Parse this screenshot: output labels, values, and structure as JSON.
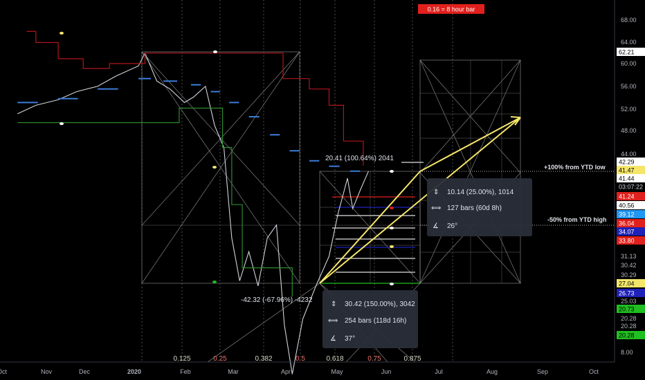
{
  "colors": {
    "background": "#000000",
    "price": "#d1d4dc",
    "ma_line": "#3b7dd8",
    "stop_line": "#b2161b",
    "support_line": "#2e8b2e",
    "projection_arrow": "#f5e66b",
    "fib_label": "#d9d9c6",
    "fib_label_red": "#e8736c",
    "tooltip_bg": "#2a2e39"
  },
  "timeframe_note": "0.16 = 8 hour bar",
  "x_axis_labels": [
    "Oct",
    "Nov",
    "Dec",
    "2020",
    "Feb",
    "Mar",
    "Apr",
    "May",
    "Jun",
    "Jul",
    "Aug",
    "Sep",
    "Oct"
  ],
  "y_axis_ticks": [
    "68.00",
    "64.00",
    "60.00",
    "56.00",
    "52.00",
    "48.00",
    "44.00",
    "40.56",
    "31.13",
    "30.42",
    "30.29",
    "25.03",
    "20.28",
    "20.28",
    "8.00"
  ],
  "price_badges": [
    {
      "text": "62.21",
      "bg": "#ffffff",
      "fg": "#000000"
    },
    {
      "text": "42.29",
      "bg": "#ffffff",
      "fg": "#000000"
    },
    {
      "text": "41.47",
      "bg": "#f5e66b",
      "fg": "#000000"
    },
    {
      "text": "41.44",
      "bg": "#ffffff",
      "fg": "#000000"
    },
    {
      "text": "03:07:22",
      "bg": "#000000",
      "fg": "#d1d4dc"
    },
    {
      "text": "41.24",
      "bg": "#e0201c",
      "fg": "#ffffff"
    },
    {
      "text": "40.56",
      "bg": "#ffffff",
      "fg": "#000000"
    },
    {
      "text": "39.12",
      "bg": "#2196f3",
      "fg": "#ffffff"
    },
    {
      "text": "36.04",
      "bg": "#e0201c",
      "fg": "#ffffff"
    },
    {
      "text": "34.07",
      "bg": "#1e22b8",
      "fg": "#ffffff"
    },
    {
      "text": "33.80",
      "bg": "#e0201c",
      "fg": "#ffffff"
    },
    {
      "text": "27.04",
      "bg": "#f5e66b",
      "fg": "#000000"
    },
    {
      "text": "26.73",
      "bg": "#1e22b8",
      "fg": "#ffffff"
    },
    {
      "text": "20.73",
      "bg": "#1fbf1f",
      "fg": "#000000"
    },
    {
      "text": "20.28",
      "bg": "#1fbf1f",
      "fg": "#000000"
    }
  ],
  "annotations": {
    "ytd_low": "+100% from YTD low",
    "ytd_high": "-50% from YTD high"
  },
  "fib_time_labels": [
    "0.125",
    "0.25",
    "0.382",
    "0.5",
    "0.618",
    "0.75",
    "0.875"
  ],
  "measure_top": "20.41 (100.64%) 2041",
  "measure_bottom": "-42.32 (-67.96%) -4232",
  "tooltip_small": {
    "price": "10.14 (25.00%), 1014",
    "bars": "127 bars (60d 8h)",
    "angle": "26°"
  },
  "tooltip_large": {
    "price": "30.42 (150.00%), 3042",
    "bars": "254 bars (118d 16h)",
    "angle": "37°"
  },
  "chart_data": {
    "type": "line",
    "title": "",
    "y_scale": "log",
    "ylim": [
      8,
      70
    ],
    "x_range": [
      "2019-10-01",
      "2020-10-10"
    ],
    "grid": false,
    "series": [
      {
        "role": "price",
        "points": [
          [
            "2019-10-01",
            50.5
          ],
          [
            "2019-10-15",
            52.0
          ],
          [
            "2019-11-01",
            53.0
          ],
          [
            "2019-11-15",
            54.5
          ],
          [
            "2019-12-01",
            55.5
          ],
          [
            "2019-12-15",
            57.5
          ],
          [
            "2020-01-01",
            59.5
          ],
          [
            "2020-01-06",
            62.2
          ],
          [
            "2020-01-15",
            56.5
          ],
          [
            "2020-01-25",
            55.0
          ],
          [
            "2020-02-05",
            52.5
          ],
          [
            "2020-02-12",
            53.5
          ],
          [
            "2020-02-21",
            55.5
          ],
          [
            "2020-02-28",
            48.5
          ],
          [
            "2020-03-06",
            45.0
          ],
          [
            "2020-03-12",
            33.0
          ],
          [
            "2020-03-18",
            28.5
          ],
          [
            "2020-03-25",
            31.5
          ],
          [
            "2020-04-01",
            28.0
          ],
          [
            "2020-04-08",
            33.0
          ],
          [
            "2020-04-15",
            34.5
          ],
          [
            "2020-04-21",
            24.5
          ],
          [
            "2020-04-27",
            20.7
          ],
          [
            "2020-05-05",
            25.0
          ],
          [
            "2020-05-15",
            28.0
          ],
          [
            "2020-05-25",
            31.0
          ],
          [
            "2020-06-01",
            36.0
          ],
          [
            "2020-06-08",
            40.5
          ],
          [
            "2020-06-12",
            36.5
          ],
          [
            "2020-06-18",
            39.0
          ],
          [
            "2020-06-24",
            41.5
          ]
        ]
      },
      {
        "role": "moving-average",
        "points": [
          [
            "2019-10-01",
            52.5
          ],
          [
            "2019-11-01",
            53.2
          ],
          [
            "2019-12-01",
            55.0
          ],
          [
            "2020-01-01",
            57.0
          ],
          [
            "2020-01-20",
            56.5
          ],
          [
            "2020-02-10",
            55.8
          ],
          [
            "2020-02-25",
            54.5
          ],
          [
            "2020-03-10",
            52.5
          ],
          [
            "2020-03-25",
            50.0
          ],
          [
            "2020-04-10",
            47.0
          ],
          [
            "2020-04-25",
            44.5
          ],
          [
            "2020-05-10",
            43.0
          ],
          [
            "2020-05-25",
            42.2
          ],
          [
            "2020-06-10",
            41.5
          ],
          [
            "2020-06-25",
            41.2
          ]
        ]
      },
      {
        "role": "trailing-stop-upper",
        "points": [
          [
            "2019-10-08",
            67.0
          ],
          [
            "2019-10-15",
            64.5
          ],
          [
            "2019-11-01",
            61.0
          ],
          [
            "2019-11-20",
            59.0
          ],
          [
            "2019-12-10",
            60.0
          ],
          [
            "2020-01-06",
            62.2
          ],
          [
            "2020-04-07",
            62.2
          ],
          [
            "2020-04-20",
            57.0
          ],
          [
            "2020-05-10",
            55.0
          ],
          [
            "2020-05-25",
            52.0
          ],
          [
            "2020-06-05",
            46.0
          ],
          [
            "2020-06-20",
            42.3
          ]
        ]
      },
      {
        "role": "trailing-stop-lower",
        "points": [
          [
            "2019-10-01",
            49.0
          ],
          [
            "2020-01-25",
            49.0
          ],
          [
            "2020-02-01",
            51.5
          ],
          [
            "2020-02-25",
            51.5
          ],
          [
            "2020-03-05",
            45.0
          ],
          [
            "2020-03-12",
            37.0
          ],
          [
            "2020-03-20",
            29.8
          ],
          [
            "2020-04-20",
            29.8
          ],
          [
            "2020-04-27",
            27.0
          ]
        ]
      }
    ]
  }
}
